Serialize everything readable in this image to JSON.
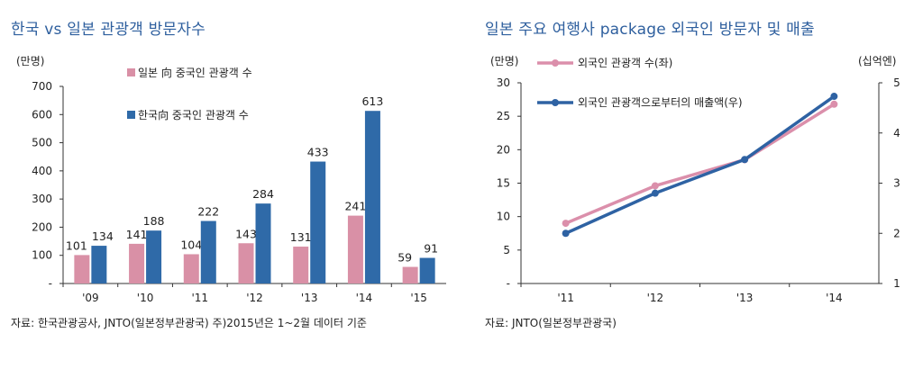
{
  "colors": {
    "title": "#2e5f9e",
    "pink": "#d990a6",
    "blue": "#2f6aa8",
    "pink_line": "#db8fab",
    "blue_line": "#2e62a3"
  },
  "left": {
    "title": "한국 vs 일본 관광객 방문자수",
    "source": "자료: 한국관광공사, JNTO(일본정부관광국) 주)2015년은 1~2월 데이터 기준"
  },
  "right": {
    "title": "일본 주요 여행사 package 외국인 방문자 및 매출",
    "source": "자료: JNTO(일본정부관광국)"
  },
  "chart_data": [
    {
      "type": "bar",
      "ylabel": "(만명)",
      "categories": [
        "'09",
        "'10",
        "'11",
        "'12",
        "'13",
        "'14",
        "'15"
      ],
      "y_ticks": [
        "-",
        "100",
        "200",
        "300",
        "400",
        "500",
        "600",
        "700"
      ],
      "ylim": [
        0,
        700
      ],
      "legend_position": "top-left",
      "series": [
        {
          "name": "일본 向 중국인 관광객 수",
          "color": "#d990a6",
          "values": [
            101,
            141,
            104,
            143,
            131,
            241,
            59
          ],
          "labels": [
            "101",
            "141",
            "104",
            "143",
            "131",
            "241",
            "59"
          ]
        },
        {
          "name": "한국向 중국인 관광객 수",
          "color": "#2f6aa8",
          "values": [
            134,
            188,
            222,
            284,
            433,
            613,
            91
          ],
          "labels": [
            "134",
            "188",
            "222",
            "284",
            "433",
            "613",
            "91"
          ]
        }
      ]
    },
    {
      "type": "line",
      "ylabel": "(만명)",
      "y2label": "(십억엔)",
      "categories": [
        "'11",
        "'12",
        "'13",
        "'14"
      ],
      "y_ticks": [
        "-",
        "5",
        "10",
        "15",
        "20",
        "25",
        "30"
      ],
      "ylim": [
        0,
        30
      ],
      "y2_ticks": [
        "1",
        "2",
        "3",
        "4",
        "5"
      ],
      "y2lim": [
        1,
        5
      ],
      "legend_position": "top-left",
      "series": [
        {
          "name": "외국인 관광객 수(좌)",
          "axis": "left",
          "color": "#db8fab",
          "values": [
            9.0,
            14.6,
            18.5,
            26.8
          ]
        },
        {
          "name": "외국인 관광객으로부터의 매출액(우)",
          "axis": "right",
          "color": "#2e62a3",
          "values": [
            2.0,
            2.8,
            3.47,
            4.73
          ]
        }
      ]
    }
  ]
}
